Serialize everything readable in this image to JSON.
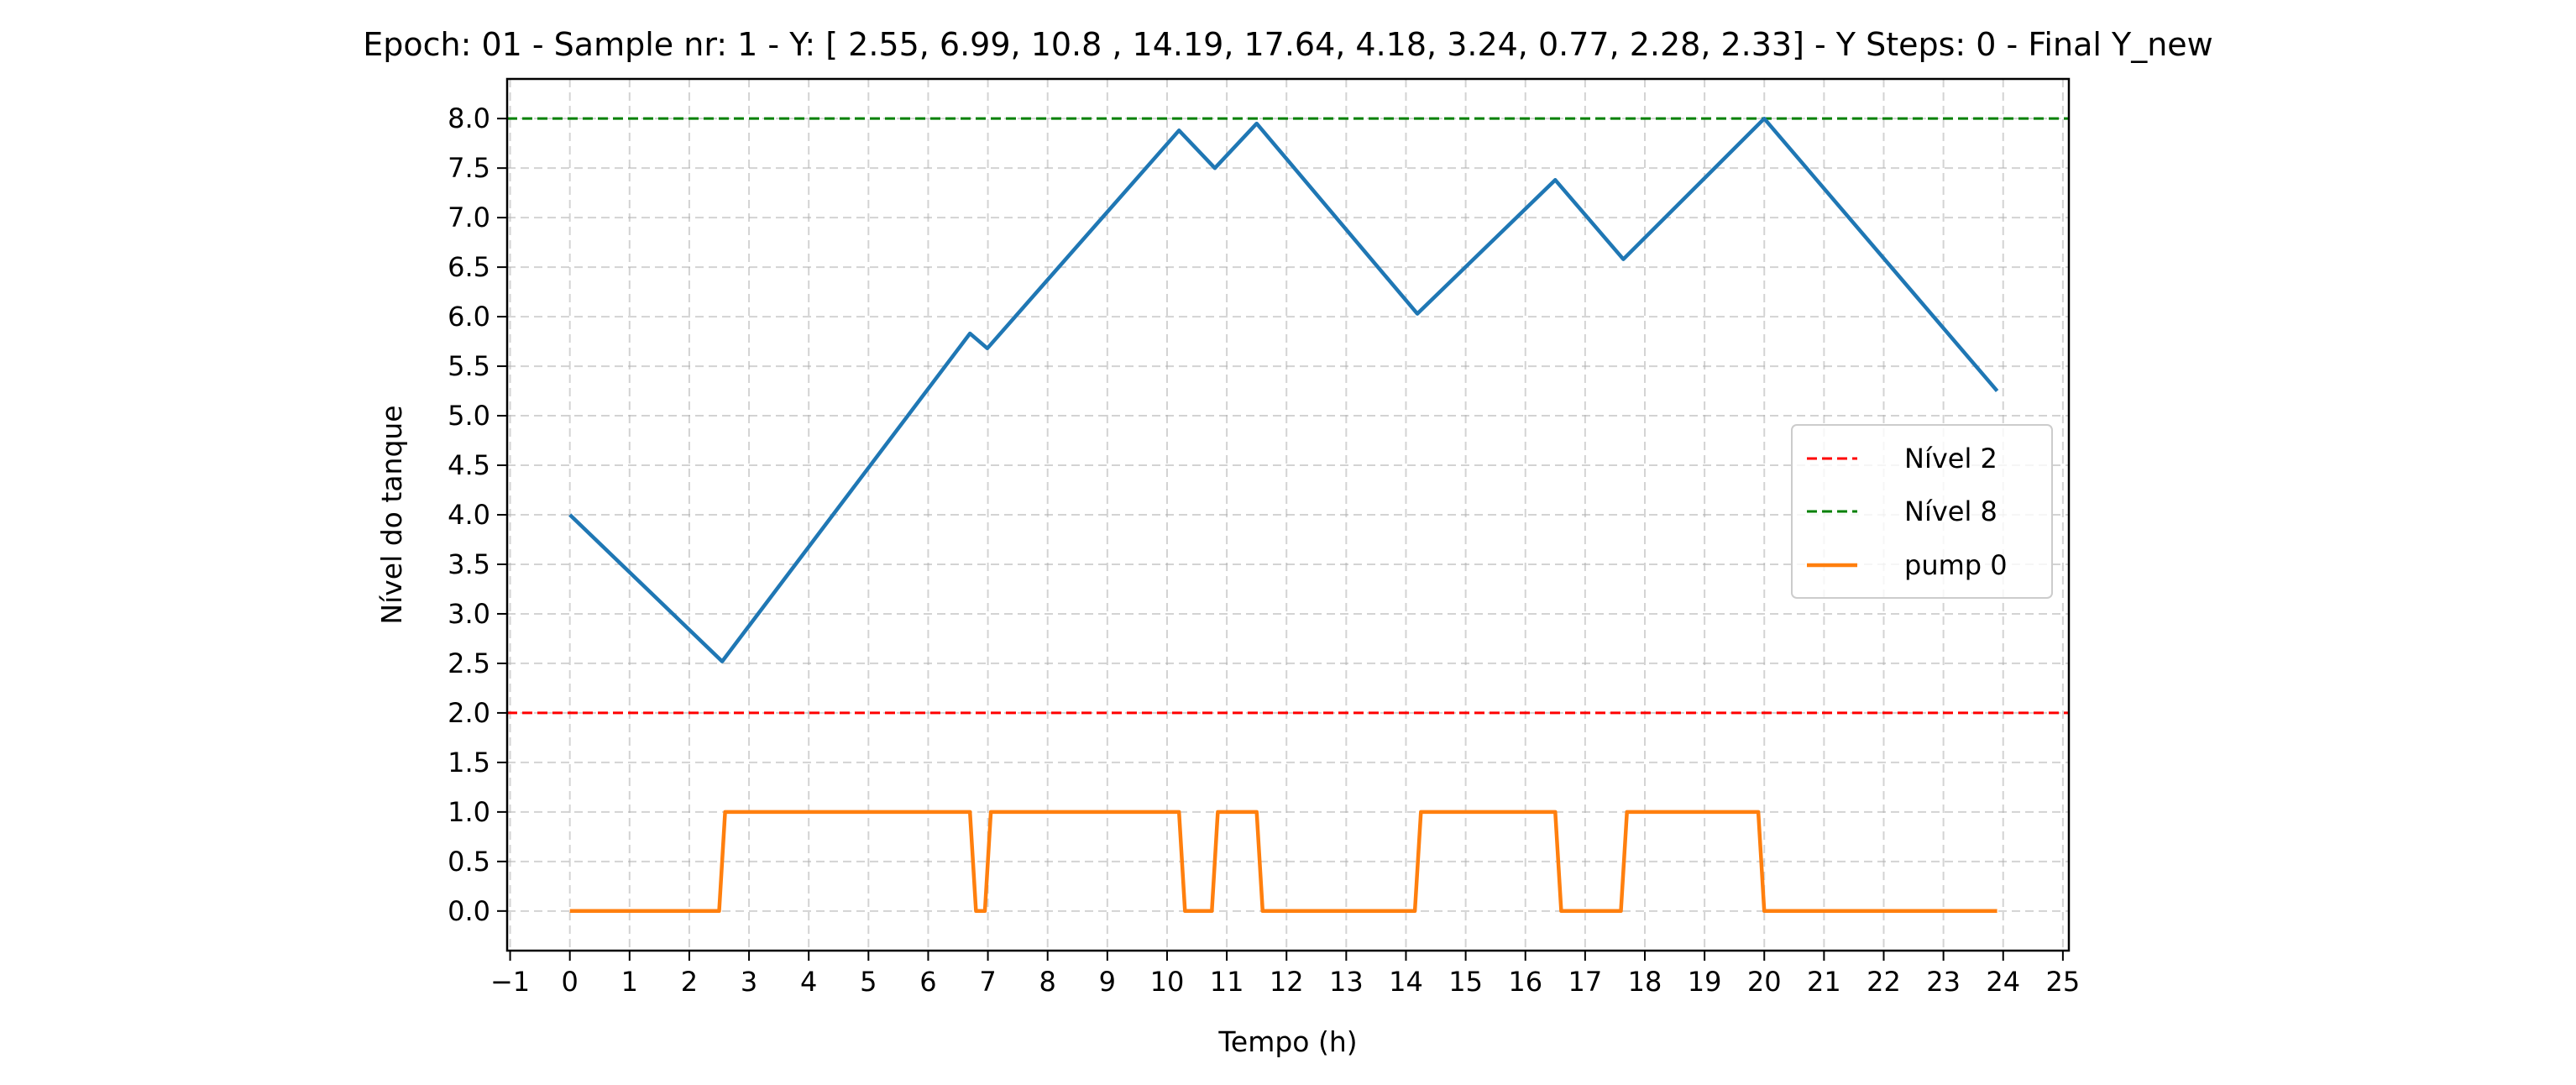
{
  "chart_data": {
    "type": "line",
    "title": "Epoch: 01 - Sample nr: 1 - Y: [ 2.55,  6.99, 10.8 , 14.19, 17.64,  4.18,  3.24,  0.77,  2.28,  2.33] - Y Steps: 0  - Final Y_new",
    "xlabel": "Tempo (h)",
    "ylabel": "Nível do tanque",
    "xlim": [
      -1.05,
      25.1
    ],
    "ylim": [
      -0.4,
      8.4
    ],
    "xticks": [
      "−1",
      "0",
      "1",
      "2",
      "3",
      "4",
      "5",
      "6",
      "7",
      "8",
      "9",
      "10",
      "11",
      "12",
      "13",
      "14",
      "15",
      "16",
      "17",
      "18",
      "19",
      "20",
      "21",
      "22",
      "23",
      "24",
      "25"
    ],
    "yticks": [
      "0.0",
      "0.5",
      "1.0",
      "1.5",
      "2.0",
      "2.5",
      "3.0",
      "3.5",
      "4.0",
      "4.5",
      "5.0",
      "5.5",
      "6.0",
      "6.5",
      "7.0",
      "7.5",
      "8.0"
    ],
    "grid": true,
    "legend_position": "center-right",
    "reference_lines": [
      {
        "name": "Nível 2",
        "y": 2.0,
        "color": "#ff0000",
        "style": "dashed"
      },
      {
        "name": "Nível 8",
        "y": 8.0,
        "color": "#008000",
        "style": "dashed"
      }
    ],
    "series": [
      {
        "color": "#1f77b4",
        "x": [
          0,
          2.55,
          6.7,
          6.99,
          10.2,
          10.8,
          11.5,
          14.19,
          16.5,
          17.64,
          20.0,
          23.9
        ],
        "y": [
          4.0,
          2.52,
          5.83,
          5.68,
          7.88,
          7.5,
          7.95,
          6.03,
          7.38,
          6.58,
          8.0,
          5.25
        ]
      },
      {
        "name": "pump 0",
        "color": "#ff7f0e",
        "x": [
          0,
          2.5,
          2.6,
          6.7,
          6.8,
          6.95,
          7.05,
          10.2,
          10.3,
          10.75,
          10.85,
          11.5,
          11.6,
          14.15,
          14.25,
          16.5,
          16.6,
          17.6,
          17.7,
          19.9,
          20.0,
          23.9
        ],
        "y": [
          0,
          0,
          1,
          1,
          0,
          0,
          1,
          1,
          0,
          0,
          1,
          1,
          0,
          0,
          1,
          1,
          0,
          0,
          1,
          1,
          0,
          0
        ]
      }
    ]
  }
}
